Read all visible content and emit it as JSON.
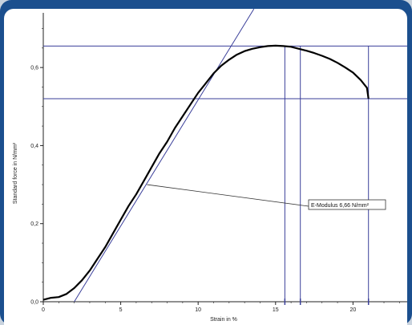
{
  "chart_data": {
    "type": "line",
    "title": "",
    "xlabel": "Strain in %",
    "ylabel": "Standard force in N/mm²",
    "xlim": [
      0,
      23.5
    ],
    "ylim": [
      0,
      0.74
    ],
    "x_ticks": [
      0,
      5,
      10,
      15,
      20
    ],
    "x_tick_labels": [
      "0",
      "5",
      "10",
      "15",
      "20"
    ],
    "y_ticks": [
      0,
      0.2,
      0.4,
      0.6
    ],
    "y_tick_labels": [
      "0,0",
      "0,2",
      "0,4",
      "0,6"
    ],
    "grid": false,
    "series": [
      {
        "x": [
          0,
          0.5,
          1.0,
          1.5,
          2.0,
          2.5,
          3.0,
          3.5,
          4.0,
          4.5,
          5.0,
          5.5,
          6.0,
          6.5,
          7.0,
          7.5,
          8.0,
          8.5,
          9.0,
          9.5,
          10.0,
          10.5,
          11.0,
          11.5,
          12.0,
          12.5,
          13.0,
          13.5,
          14.0,
          14.5,
          15.0,
          15.5,
          16.0,
          16.5,
          17.0,
          17.5,
          18.0,
          18.5,
          19.0,
          19.5,
          20.0,
          20.5,
          20.9,
          21.0
        ],
        "y": [
          0.005,
          0.01,
          0.012,
          0.02,
          0.035,
          0.055,
          0.08,
          0.11,
          0.14,
          0.175,
          0.21,
          0.245,
          0.275,
          0.31,
          0.345,
          0.38,
          0.41,
          0.445,
          0.475,
          0.505,
          0.535,
          0.56,
          0.585,
          0.605,
          0.62,
          0.633,
          0.642,
          0.648,
          0.652,
          0.655,
          0.656,
          0.655,
          0.653,
          0.648,
          0.643,
          0.637,
          0.63,
          0.622,
          0.612,
          0.6,
          0.587,
          0.568,
          0.548,
          0.52
        ]
      }
    ],
    "modulus_line": {
      "x": [
        2.0,
        13.6
      ],
      "y": [
        0.0,
        0.75
      ]
    },
    "horizontal_lines": [
      0.655,
      0.52
    ],
    "vertical_lines": [
      15.6,
      16.6,
      21.0
    ],
    "annotation": {
      "text": "E-Modulus  6,66  N/mm²",
      "target": {
        "x": 6.7,
        "y": 0.3
      }
    }
  }
}
